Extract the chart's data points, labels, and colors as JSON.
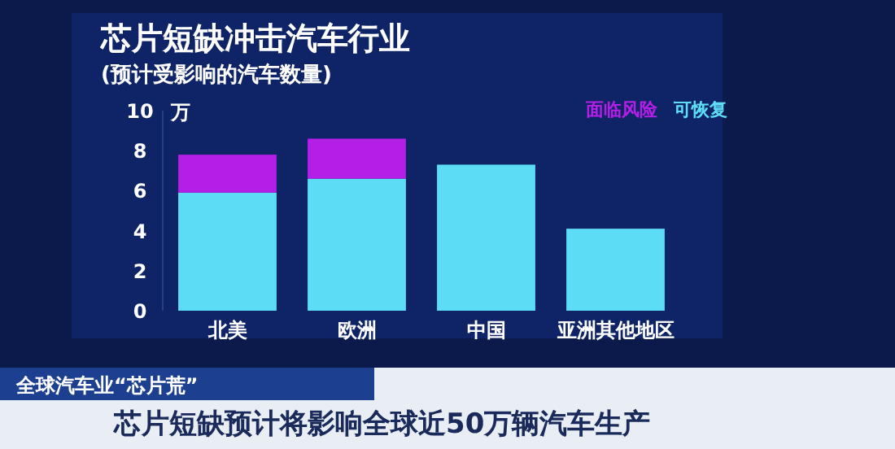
{
  "chart_data": {
    "type": "bar",
    "title": "芯片短缺冲击汽车行业",
    "subtitle": "(预计受影响的汽车数量)",
    "ylabel": "万",
    "categories": [
      "北美",
      "欧洲",
      "中国",
      "亚洲其他地区"
    ],
    "series": [
      {
        "name": "可恢复",
        "color": "#5ddcf5",
        "values": [
          5.9,
          6.6,
          7.3,
          4.1
        ]
      },
      {
        "name": "面临风险",
        "color": "#b31fe6",
        "values": [
          1.9,
          2.0,
          null,
          null
        ]
      }
    ],
    "stacked": true,
    "ylim": [
      0,
      10
    ],
    "yticks": [
      0,
      2,
      4,
      6,
      8,
      10
    ],
    "legend": "top right",
    "annotations": [
      "全球汽车业“芯片荒”",
      "芯片短缺预计将影响全球近50万辆汽车生产"
    ]
  }
}
